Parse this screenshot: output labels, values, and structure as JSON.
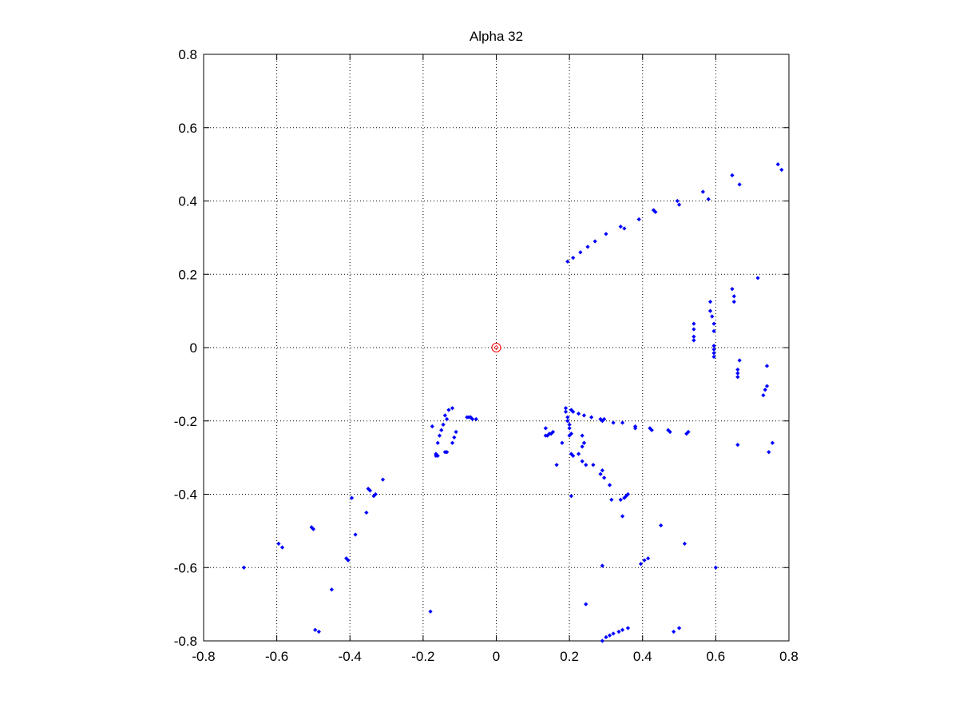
{
  "chart_data": {
    "type": "scatter",
    "title": "Alpha 32",
    "xlabel": "",
    "ylabel": "",
    "xlim": [
      -0.8,
      0.8
    ],
    "ylim": [
      -0.8,
      0.8
    ],
    "xticks": [
      -0.8,
      -0.6,
      -0.4,
      -0.2,
      0,
      0.2,
      0.4,
      0.6,
      0.8
    ],
    "yticks": [
      -0.8,
      -0.6,
      -0.4,
      -0.2,
      0,
      0.2,
      0.4,
      0.6,
      0.8
    ],
    "xtick_labels": [
      "-0.8",
      "-0.6",
      "-0.4",
      "-0.2",
      "0",
      "0.2",
      "0.4",
      "0.6",
      "0.8"
    ],
    "ytick_labels": [
      "-0.8",
      "-0.6",
      "-0.4",
      "-0.2",
      "0",
      "0.2",
      "0.4",
      "0.6",
      "0.8"
    ],
    "grid": true,
    "colors": {
      "points": "#0000ff",
      "origin_marker": "#ff0000",
      "axes": "#000000",
      "grid": "#000000"
    },
    "origin_marker": {
      "x": 0,
      "y": 0,
      "shape": "circle"
    },
    "series": [
      {
        "marker": "dot",
        "points": [
          [
            0.195,
            0.235
          ],
          [
            0.21,
            0.245
          ],
          [
            0.23,
            0.26
          ],
          [
            0.25,
            0.275
          ],
          [
            0.27,
            0.29
          ],
          [
            0.3,
            0.31
          ],
          [
            0.34,
            0.33
          ],
          [
            0.35,
            0.325
          ],
          [
            0.39,
            0.35
          ],
          [
            0.43,
            0.375
          ],
          [
            0.435,
            0.37
          ],
          [
            0.495,
            0.4
          ],
          [
            0.5,
            0.39
          ],
          [
            0.565,
            0.425
          ],
          [
            0.58,
            0.405
          ],
          [
            0.645,
            0.47
          ],
          [
            0.665,
            0.445
          ],
          [
            0.77,
            0.5
          ],
          [
            0.78,
            0.485
          ],
          [
            0.715,
            0.19
          ],
          [
            0.645,
            0.16
          ],
          [
            0.65,
            0.14
          ],
          [
            0.65,
            0.125
          ],
          [
            0.585,
            0.125
          ],
          [
            0.585,
            0.1
          ],
          [
            0.59,
            0.085
          ],
          [
            0.54,
            0.065
          ],
          [
            0.54,
            0.05
          ],
          [
            0.54,
            0.03
          ],
          [
            0.54,
            0.02
          ],
          [
            0.595,
            0.065
          ],
          [
            0.595,
            0.045
          ],
          [
            0.595,
            0.005
          ],
          [
            0.595,
            -0.005
          ],
          [
            0.595,
            -0.015
          ],
          [
            0.595,
            -0.025
          ],
          [
            0.665,
            -0.035
          ],
          [
            0.66,
            -0.06
          ],
          [
            0.66,
            -0.07
          ],
          [
            0.66,
            -0.08
          ],
          [
            0.74,
            -0.05
          ],
          [
            0.74,
            -0.105
          ],
          [
            0.735,
            -0.115
          ],
          [
            0.73,
            -0.13
          ],
          [
            0.19,
            -0.165
          ],
          [
            0.19,
            -0.175
          ],
          [
            0.205,
            -0.17
          ],
          [
            0.21,
            -0.175
          ],
          [
            0.225,
            -0.18
          ],
          [
            0.24,
            -0.185
          ],
          [
            0.26,
            -0.19
          ],
          [
            0.285,
            -0.195
          ],
          [
            0.29,
            -0.2
          ],
          [
            0.295,
            -0.195
          ],
          [
            0.32,
            -0.205
          ],
          [
            0.345,
            -0.205
          ],
          [
            0.38,
            -0.215
          ],
          [
            0.38,
            -0.22
          ],
          [
            0.42,
            -0.22
          ],
          [
            0.425,
            -0.225
          ],
          [
            0.47,
            -0.225
          ],
          [
            0.475,
            -0.23
          ],
          [
            0.525,
            -0.23
          ],
          [
            0.52,
            -0.235
          ],
          [
            0.195,
            -0.19
          ],
          [
            0.195,
            -0.2
          ],
          [
            0.2,
            -0.21
          ],
          [
            0.2,
            -0.22
          ],
          [
            0.135,
            -0.22
          ],
          [
            0.135,
            -0.24
          ],
          [
            0.14,
            -0.24
          ],
          [
            0.145,
            -0.235
          ],
          [
            0.15,
            -0.235
          ],
          [
            0.155,
            -0.23
          ],
          [
            0.165,
            -0.32
          ],
          [
            0.18,
            -0.26
          ],
          [
            0.2,
            -0.24
          ],
          [
            0.205,
            -0.235
          ],
          [
            0.205,
            -0.29
          ],
          [
            0.21,
            -0.295
          ],
          [
            0.225,
            -0.29
          ],
          [
            0.235,
            -0.24
          ],
          [
            0.24,
            -0.26
          ],
          [
            0.24,
            -0.26
          ],
          [
            0.235,
            -0.27
          ],
          [
            0.235,
            -0.31
          ],
          [
            0.245,
            -0.32
          ],
          [
            0.265,
            -0.32
          ],
          [
            0.29,
            -0.335
          ],
          [
            0.285,
            -0.345
          ],
          [
            0.295,
            -0.355
          ],
          [
            0.31,
            -0.375
          ],
          [
            0.315,
            -0.415
          ],
          [
            0.34,
            -0.415
          ],
          [
            0.35,
            -0.41
          ],
          [
            0.355,
            -0.405
          ],
          [
            0.36,
            -0.4
          ],
          [
            0.345,
            -0.46
          ],
          [
            0.205,
            -0.405
          ],
          [
            0.66,
            -0.265
          ],
          [
            0.755,
            -0.26
          ],
          [
            0.745,
            -0.285
          ],
          [
            -0.12,
            -0.165
          ],
          [
            -0.13,
            -0.17
          ],
          [
            -0.14,
            -0.185
          ],
          [
            -0.135,
            -0.195
          ],
          [
            -0.145,
            -0.21
          ],
          [
            -0.15,
            -0.225
          ],
          [
            -0.155,
            -0.24
          ],
          [
            -0.16,
            -0.26
          ],
          [
            -0.165,
            -0.29
          ],
          [
            -0.165,
            -0.295
          ],
          [
            -0.16,
            -0.295
          ],
          [
            -0.175,
            -0.215
          ],
          [
            -0.14,
            -0.285
          ],
          [
            -0.135,
            -0.285
          ],
          [
            -0.12,
            -0.26
          ],
          [
            -0.115,
            -0.245
          ],
          [
            -0.11,
            -0.23
          ],
          [
            -0.08,
            -0.19
          ],
          [
            -0.075,
            -0.19
          ],
          [
            -0.07,
            -0.19
          ],
          [
            -0.065,
            -0.195
          ],
          [
            -0.055,
            -0.195
          ],
          [
            -0.31,
            -0.36
          ],
          [
            -0.33,
            -0.4
          ],
          [
            -0.335,
            -0.405
          ],
          [
            -0.345,
            -0.39
          ],
          [
            -0.35,
            -0.385
          ],
          [
            -0.355,
            -0.45
          ],
          [
            -0.395,
            -0.41
          ],
          [
            -0.385,
            -0.51
          ],
          [
            -0.41,
            -0.575
          ],
          [
            -0.405,
            -0.58
          ],
          [
            -0.45,
            -0.66
          ],
          [
            -0.5,
            -0.495
          ],
          [
            -0.505,
            -0.49
          ],
          [
            -0.585,
            -0.545
          ],
          [
            -0.595,
            -0.535
          ],
          [
            -0.69,
            -0.6
          ],
          [
            -0.495,
            -0.77
          ],
          [
            -0.485,
            -0.775
          ],
          [
            -0.18,
            -0.72
          ],
          [
            0.45,
            -0.485
          ],
          [
            0.515,
            -0.535
          ],
          [
            0.6,
            -0.6
          ],
          [
            0.395,
            -0.59
          ],
          [
            0.405,
            -0.58
          ],
          [
            0.415,
            -0.575
          ],
          [
            0.29,
            -0.595
          ],
          [
            0.245,
            -0.7
          ],
          [
            0.29,
            -0.8
          ],
          [
            0.3,
            -0.79
          ],
          [
            0.31,
            -0.785
          ],
          [
            0.32,
            -0.78
          ],
          [
            0.335,
            -0.775
          ],
          [
            0.345,
            -0.77
          ],
          [
            0.36,
            -0.765
          ],
          [
            0.485,
            -0.775
          ],
          [
            0.5,
            -0.765
          ]
        ]
      }
    ]
  }
}
